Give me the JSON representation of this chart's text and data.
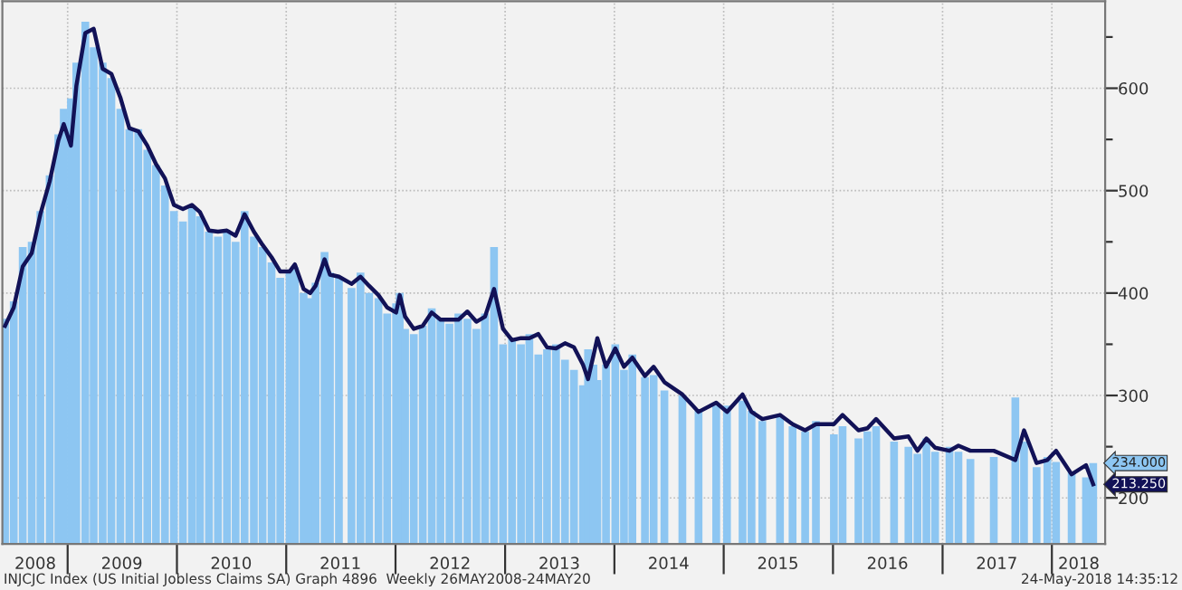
{
  "chart_data": {
    "type": "bar",
    "x": [
      "2008-06-06",
      "2008-07-05",
      "2008-08-04",
      "2008-09-03",
      "2008-10-02",
      "2008-11-02",
      "2008-12-01",
      "2008-12-19",
      "2009-01-12",
      "2009-01-30",
      "2009-03-01",
      "2009-03-29",
      "2009-04-28",
      "2009-05-27",
      "2009-06-26",
      "2009-07-26",
      "2009-08-25",
      "2009-09-24",
      "2009-10-23",
      "2009-11-22",
      "2009-12-22",
      "2010-01-21",
      "2010-02-20",
      "2010-03-19",
      "2010-04-18",
      "2010-05-18",
      "2010-06-17",
      "2010-07-16",
      "2010-08-15",
      "2010-09-15",
      "2010-10-14",
      "2010-11-13",
      "2010-12-12",
      "2011-01-12",
      "2011-01-30",
      "2011-02-28",
      "2011-03-22",
      "2011-04-09",
      "2011-05-09",
      "2011-05-27",
      "2011-06-26",
      "2011-08-07",
      "2011-09-06",
      "2011-10-05",
      "2011-11-05",
      "2011-12-04",
      "2012-01-03",
      "2012-01-15",
      "2012-02-02",
      "2012-03-02",
      "2012-04-01",
      "2012-05-01",
      "2012-05-30",
      "2012-06-29",
      "2012-07-29",
      "2012-08-28",
      "2012-09-27",
      "2012-10-26",
      "2012-11-25",
      "2012-12-25",
      "2013-01-24",
      "2013-02-23",
      "2013-03-23",
      "2013-04-22",
      "2013-05-21",
      "2013-06-20",
      "2013-07-20",
      "2013-08-19",
      "2013-09-18",
      "2013-10-05",
      "2013-10-23",
      "2013-11-05",
      "2013-12-04",
      "2014-01-04",
      "2014-02-02",
      "2014-03-02",
      "2014-04-13",
      "2014-05-12",
      "2014-06-17",
      "2014-08-16",
      "2014-10-09",
      "2014-12-07",
      "2015-01-12",
      "2015-03-05",
      "2015-04-04",
      "2015-05-10",
      "2015-07-08",
      "2015-08-19",
      "2015-09-30",
      "2015-11-05",
      "2016-01-04",
      "2016-02-02",
      "2016-03-26",
      "2016-04-25",
      "2016-05-24",
      "2016-07-23",
      "2016-09-09",
      "2016-10-09",
      "2016-11-08",
      "2016-12-07",
      "2017-01-24",
      "2017-02-23",
      "2017-04-04",
      "2017-06-21",
      "2017-09-01",
      "2017-09-30",
      "2017-11-11",
      "2017-12-17",
      "2018-01-15",
      "2018-03-08",
      "2018-04-25",
      "2018-05-19"
    ],
    "series": [
      {
        "color": "#8dc6f2",
        "values": [
          375,
          392,
          445,
          450,
          480,
          515,
          555,
          580,
          590,
          625,
          665,
          640,
          625,
          610,
          580,
          560,
          560,
          540,
          525,
          505,
          480,
          470,
          485,
          475,
          460,
          455,
          460,
          450,
          480,
          455,
          445,
          430,
          415,
          420,
          425,
          400,
          395,
          410,
          440,
          420,
          415,
          405,
          420,
          400,
          395,
          380,
          390,
          400,
          365,
          360,
          368,
          385,
          375,
          370,
          380,
          375,
          365,
          380,
          445,
          350,
          355,
          350,
          360,
          340,
          345,
          350,
          335,
          325,
          310,
          345,
          330,
          315,
          330,
          350,
          325,
          340,
          318,
          320,
          305,
          300,
          285,
          290,
          290,
          295,
          285,
          275,
          280,
          270,
          265,
          275,
          262,
          270,
          258,
          265,
          270,
          255,
          250,
          243,
          258,
          245,
          250,
          245,
          238,
          240,
          298,
          255,
          230,
          240,
          235,
          225,
          220,
          234
        ]
      },
      {
        "type": "line",
        "color": "#121257",
        "values": [
          368,
          386,
          426,
          439,
          477,
          509,
          549,
          565,
          544,
          602,
          654,
          658,
          619,
          614,
          591,
          561,
          558,
          544,
          526,
          512,
          486,
          482,
          486,
          479,
          461,
          460,
          461,
          456,
          477,
          460,
          447,
          435,
          421,
          421,
          428,
          404,
          400,
          407,
          433,
          418,
          416,
          409,
          416,
          407,
          398,
          386,
          381,
          398,
          377,
          365,
          368,
          381,
          374,
          374,
          374,
          382,
          372,
          377,
          404,
          365,
          354,
          356,
          356,
          360,
          347,
          346,
          351,
          347,
          330,
          316,
          339,
          356,
          328,
          346,
          328,
          337,
          319,
          328,
          313,
          301,
          284,
          293,
          284,
          301,
          284,
          277,
          281,
          272,
          266,
          272,
          272,
          281,
          266,
          268,
          277,
          258,
          260,
          246,
          258,
          249,
          246,
          251,
          246,
          246,
          237,
          266,
          234,
          237,
          246,
          223,
          232,
          213.25
        ]
      }
    ],
    "ylim": [
      155,
      685
    ],
    "yticks": [
      200,
      {
        "value": 250,
        "label": null
      },
      300,
      {
        "value": 350,
        "label": null
      },
      400,
      {
        "value": 450,
        "label": null
      },
      500,
      {
        "value": 550,
        "label": null
      },
      600,
      {
        "value": 650,
        "label": null
      }
    ],
    "xlim": [
      "2008-05-28",
      "2018-06-28"
    ],
    "xticks": [
      {
        "value": "2008-09-15",
        "label": "2008"
      },
      {
        "value": "2009-01-01",
        "label": null
      },
      {
        "value": "2009-07-01",
        "label": "2009"
      },
      {
        "value": "2010-01-01",
        "label": null
      },
      {
        "value": "2010-07-01",
        "label": "2010"
      },
      {
        "value": "2011-01-01",
        "label": null
      },
      {
        "value": "2011-07-01",
        "label": "2011"
      },
      {
        "value": "2012-01-01",
        "label": null
      },
      {
        "value": "2012-07-01",
        "label": "2012"
      },
      {
        "value": "2013-01-01",
        "label": null
      },
      {
        "value": "2013-07-01",
        "label": "2013"
      },
      {
        "value": "2014-01-01",
        "label": null
      },
      {
        "value": "2014-07-01",
        "label": "2014"
      },
      {
        "value": "2015-01-01",
        "label": null
      },
      {
        "value": "2015-07-01",
        "label": "2015"
      },
      {
        "value": "2016-01-01",
        "label": null
      },
      {
        "value": "2016-07-01",
        "label": "2016"
      },
      {
        "value": "2017-01-01",
        "label": null
      },
      {
        "value": "2017-07-01",
        "label": "2017"
      },
      {
        "value": "2018-01-01",
        "label": null
      },
      {
        "value": "2018-04-01",
        "label": "2018"
      }
    ],
    "grid": true,
    "annotations": [
      {
        "text": "234.000",
        "x": "2018-05-19",
        "y": 234
      },
      {
        "text": "213.250",
        "x": "2018-05-19",
        "y": 213.25
      },
      "INJCJC Index (US Initial Jobless Claims SA) Graph 4896  Weekly 26MAY2008-24MAY20",
      "24-May-2018 14:35:12"
    ]
  }
}
